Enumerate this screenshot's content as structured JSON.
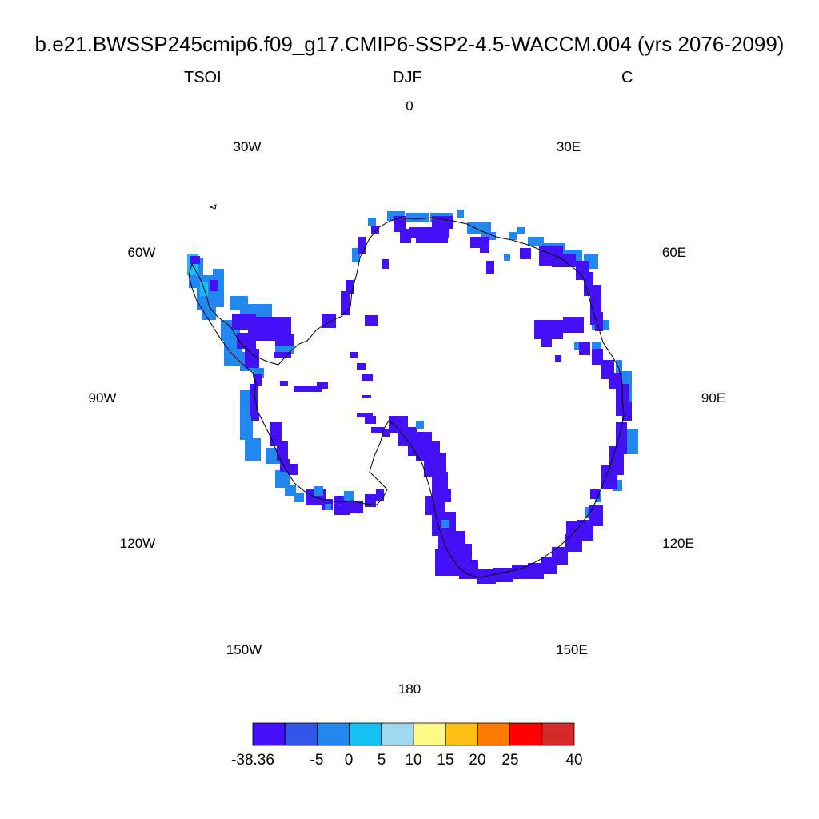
{
  "title": "b.e21.BWSSP245cmip6.f09_g17.CMIP6-SSP2-4.5-WACCM.004 (yrs 2076-2099)",
  "subtitles": {
    "left": "TSOI",
    "center": "DJF",
    "right": "C"
  },
  "longitude_labels": [
    "0",
    "30E",
    "60E",
    "90E",
    "120E",
    "150E",
    "180",
    "150W",
    "120W",
    "90W",
    "60W",
    "30W"
  ],
  "colorbar": {
    "colors": [
      "#4410f5",
      "#3355e8",
      "#2288f0",
      "#15c0f5",
      "#a0d8f0",
      "#fff888",
      "#ffc015",
      "#ff7a00",
      "#ff0000",
      "#d42a2a"
    ],
    "labels": [
      "-38.36",
      "-5",
      "0",
      "5",
      "10",
      "15",
      "20",
      "25",
      "40"
    ]
  }
}
